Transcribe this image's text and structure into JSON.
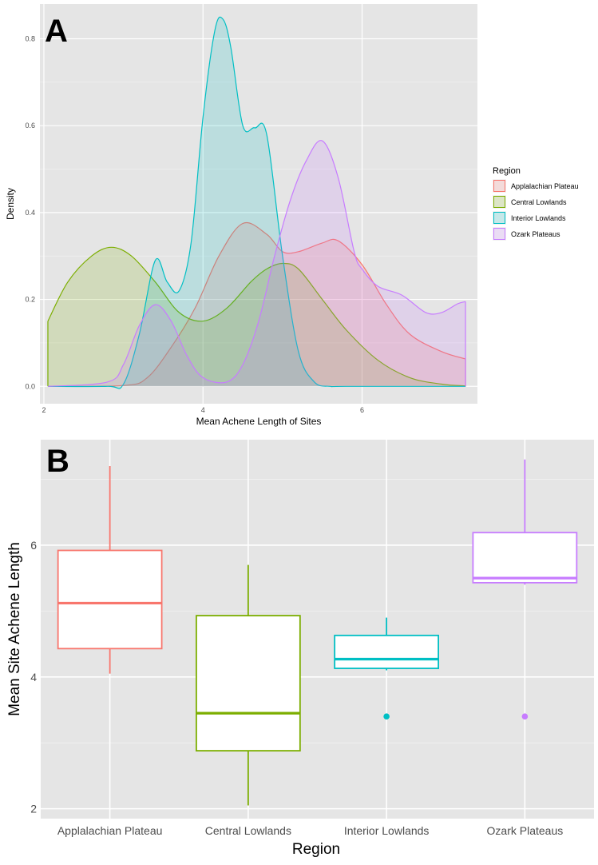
{
  "chart_data": [
    {
      "type": "area",
      "panel_label": "A",
      "xlabel": "Mean Achene Length of Sites",
      "ylabel": "Density",
      "xlim": [
        1.95,
        7.45
      ],
      "ylim": [
        -0.04,
        0.88
      ],
      "x_ticks": [
        2,
        4,
        6
      ],
      "x_tick_labels": [
        "2",
        "4",
        "6"
      ],
      "y_ticks": [
        0.0,
        0.2,
        0.4,
        0.6,
        0.8
      ],
      "y_tick_labels": [
        "0.0",
        "0.2",
        "0.4",
        "0.6",
        "0.8"
      ],
      "grid": true,
      "legend": {
        "title": "Region",
        "position": "right"
      },
      "series": [
        {
          "name": "Applalachian Plateau",
          "color": "#F8766D",
          "x": [
            2.05,
            3.0,
            3.3,
            3.6,
            3.9,
            4.2,
            4.5,
            4.8,
            5.0,
            5.2,
            5.5,
            5.7,
            6.0,
            6.3,
            6.6,
            7.0,
            7.3
          ],
          "y": [
            0,
            0.002,
            0.02,
            0.09,
            0.18,
            0.3,
            0.375,
            0.35,
            0.31,
            0.31,
            0.33,
            0.335,
            0.28,
            0.19,
            0.12,
            0.08,
            0.063
          ]
        },
        {
          "name": "Central Lowlands",
          "color": "#7CAE00",
          "x": [
            2.05,
            2.3,
            2.6,
            2.85,
            3.1,
            3.4,
            3.7,
            4.0,
            4.3,
            4.6,
            4.8,
            5.0,
            5.2,
            5.5,
            5.8,
            6.2,
            6.6,
            7.0,
            7.3
          ],
          "y": [
            0.15,
            0.24,
            0.3,
            0.32,
            0.3,
            0.24,
            0.17,
            0.15,
            0.18,
            0.24,
            0.27,
            0.283,
            0.27,
            0.2,
            0.13,
            0.06,
            0.02,
            0.005,
            0.001
          ]
        },
        {
          "name": "Interior Lowlands",
          "color": "#00BFC4",
          "x": [
            2.05,
            2.8,
            3.0,
            3.2,
            3.4,
            3.55,
            3.7,
            3.85,
            4.0,
            4.15,
            4.25,
            4.35,
            4.5,
            4.65,
            4.8,
            5.0,
            5.2,
            5.4,
            5.6,
            5.8,
            7.3
          ],
          "y": [
            0,
            0,
            0.005,
            0.12,
            0.29,
            0.24,
            0.22,
            0.33,
            0.62,
            0.82,
            0.845,
            0.78,
            0.6,
            0.595,
            0.58,
            0.3,
            0.08,
            0.01,
            0,
            0,
            0
          ]
        },
        {
          "name": "Ozark Plateaus",
          "color": "#C77CFF",
          "x": [
            2.05,
            2.8,
            3.0,
            3.2,
            3.4,
            3.6,
            3.8,
            4.0,
            4.3,
            4.5,
            4.7,
            4.9,
            5.1,
            5.3,
            5.5,
            5.7,
            5.9,
            6.0,
            6.2,
            6.5,
            6.8,
            7.0,
            7.2,
            7.3
          ],
          "y": [
            0,
            0.01,
            0.05,
            0.14,
            0.188,
            0.15,
            0.07,
            0.02,
            0.01,
            0.05,
            0.15,
            0.3,
            0.43,
            0.52,
            0.565,
            0.48,
            0.31,
            0.27,
            0.23,
            0.21,
            0.17,
            0.17,
            0.19,
            0.195
          ]
        }
      ]
    },
    {
      "type": "box",
      "panel_label": "B",
      "xlabel": "Region",
      "ylabel": "Mean Site Achene Length",
      "ylim": [
        1.85,
        7.6
      ],
      "y_ticks": [
        2,
        4,
        6
      ],
      "y_tick_labels": [
        "2",
        "4",
        "6"
      ],
      "grid": true,
      "categories": [
        "Applalachian Plateau",
        "Central Lowlands",
        "Interior Lowlands",
        "Ozark Plateaus"
      ],
      "boxes": [
        {
          "name": "Applalachian Plateau",
          "color": "#F8766D",
          "whisker_low": 4.05,
          "q1": 4.43,
          "median": 5.12,
          "q3": 5.92,
          "whisker_high": 7.2,
          "outliers": []
        },
        {
          "name": "Central Lowlands",
          "color": "#7CAE00",
          "whisker_low": 2.05,
          "q1": 2.88,
          "median": 3.45,
          "q3": 4.93,
          "whisker_high": 5.7,
          "outliers": []
        },
        {
          "name": "Interior Lowlands",
          "color": "#00BFC4",
          "whisker_low": 4.1,
          "q1": 4.13,
          "median": 4.27,
          "q3": 4.63,
          "whisker_high": 4.9,
          "outliers": [
            3.4
          ]
        },
        {
          "name": "Ozark Plateaus",
          "color": "#C77CFF",
          "whisker_low": 5.4,
          "q1": 5.43,
          "median": 5.5,
          "q3": 6.19,
          "whisker_high": 7.3,
          "outliers": [
            3.4
          ]
        }
      ]
    }
  ]
}
